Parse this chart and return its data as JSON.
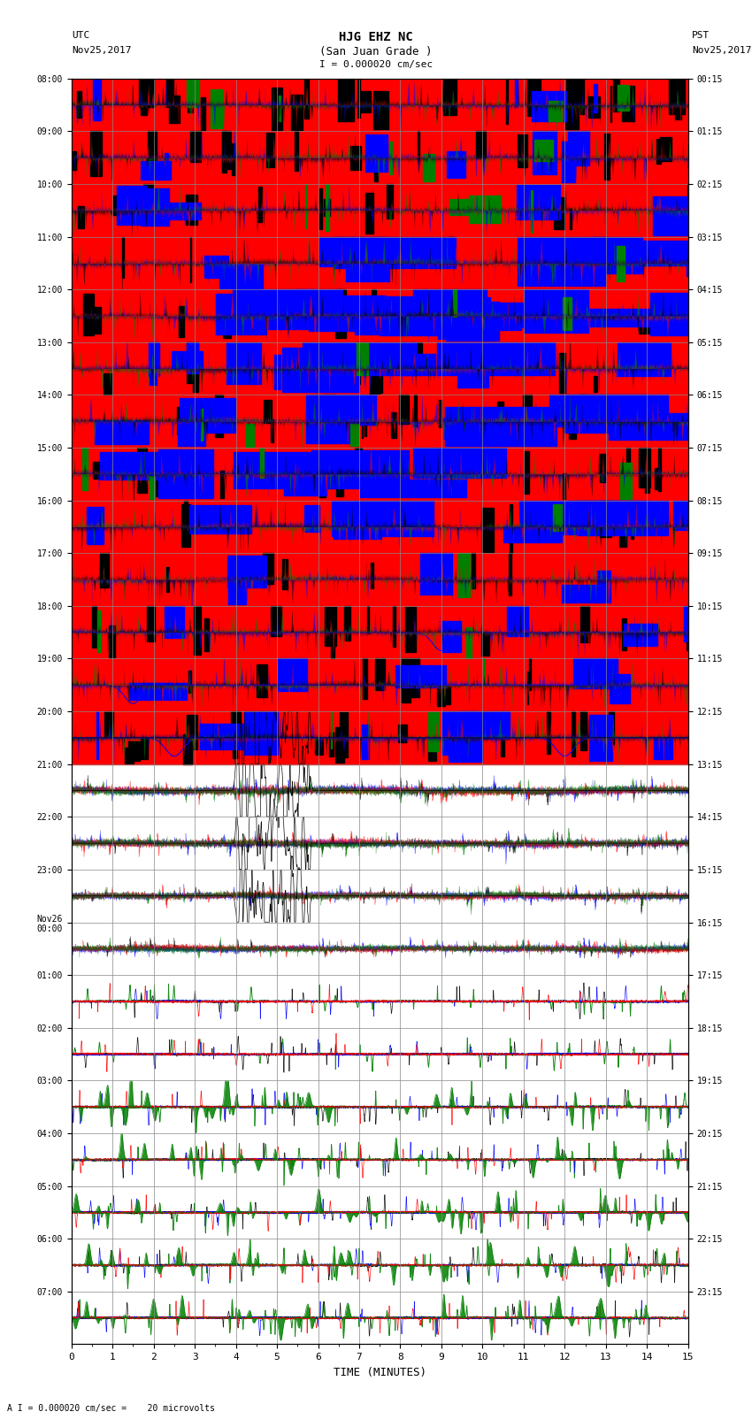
{
  "title_line1": "HJG EHZ NC",
  "title_line2": "(San Juan Grade )",
  "scale_label": "I = 0.000020 cm/sec",
  "utc_label": "UTC",
  "utc_date": "Nov25,2017",
  "pst_label": "PST",
  "pst_date": "Nov25,2017",
  "bottom_label": "A I = 0.000020 cm/sec =    20 microvolts",
  "xlabel": "TIME (MINUTES)",
  "left_times_utc": [
    "08:00",
    "09:00",
    "10:00",
    "11:00",
    "12:00",
    "13:00",
    "14:00",
    "15:00",
    "16:00",
    "17:00",
    "18:00",
    "19:00",
    "20:00",
    "21:00",
    "22:00",
    "23:00",
    "Nov26\n00:00",
    "01:00",
    "02:00",
    "03:00",
    "04:00",
    "05:00",
    "06:00",
    "07:00"
  ],
  "right_times_pst": [
    "00:15",
    "01:15",
    "02:15",
    "03:15",
    "04:15",
    "05:15",
    "06:15",
    "07:15",
    "08:15",
    "09:15",
    "10:15",
    "11:15",
    "12:15",
    "13:15",
    "14:15",
    "15:15",
    "16:15",
    "17:15",
    "18:15",
    "19:15",
    "20:15",
    "21:15",
    "22:15",
    "23:15"
  ],
  "bg_color": "white",
  "xlim": [
    0,
    15
  ],
  "n_rows": 24,
  "xmajor_ticks": [
    0,
    1,
    2,
    3,
    4,
    5,
    6,
    7,
    8,
    9,
    10,
    11,
    12,
    13,
    14,
    15
  ],
  "grid_color": "#888888",
  "grid_linewidth": 0.5,
  "saturated_rows": 13,
  "n_pts": 6000
}
